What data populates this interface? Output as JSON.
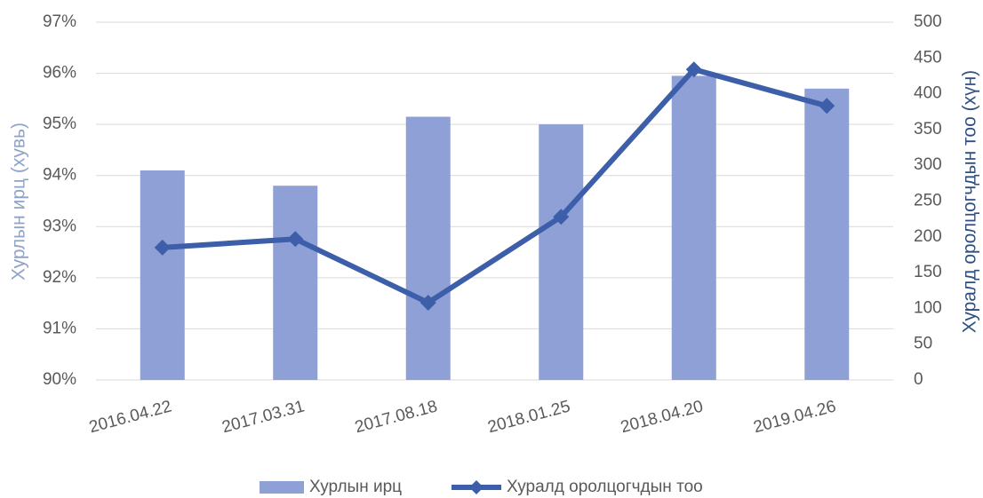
{
  "chart_data": {
    "type": "bar",
    "y_label": "Хурлын ирц (хувь)",
    "y2_label": "Хуралд оролцогчдын тоо (хүн)",
    "categories": [
      "2016.04.22",
      "2017.03.31",
      "2017.08.18",
      "2018.01.25",
      "2018.04.20",
      "2019.04.26"
    ],
    "series": [
      {
        "name": "Хурлын ирц",
        "type": "bar",
        "color": "#8ea0d5",
        "values": [
          94.1,
          93.8,
          95.15,
          95.0,
          95.95,
          95.7
        ]
      },
      {
        "name": "Хуралд оролцогчдын тоо",
        "type": "line",
        "axis": "y2",
        "color": "#3d5fa9",
        "values": [
          185,
          197,
          108,
          228,
          434,
          383
        ]
      }
    ],
    "ylim": [
      90,
      97
    ],
    "yticks": [
      {
        "value": 90,
        "label": "90%"
      },
      {
        "value": 91,
        "label": "91%"
      },
      {
        "value": 92,
        "label": "92%"
      },
      {
        "value": 93,
        "label": "93%"
      },
      {
        "value": 94,
        "label": "94%"
      },
      {
        "value": 95,
        "label": "95%"
      },
      {
        "value": 96,
        "label": "96%"
      },
      {
        "value": 97,
        "label": "97%"
      }
    ],
    "y2lim": [
      0,
      500
    ],
    "y2ticks": [
      0,
      50,
      100,
      150,
      200,
      250,
      300,
      350,
      400,
      450,
      500
    ],
    "grid": true,
    "legend": "bottom"
  }
}
